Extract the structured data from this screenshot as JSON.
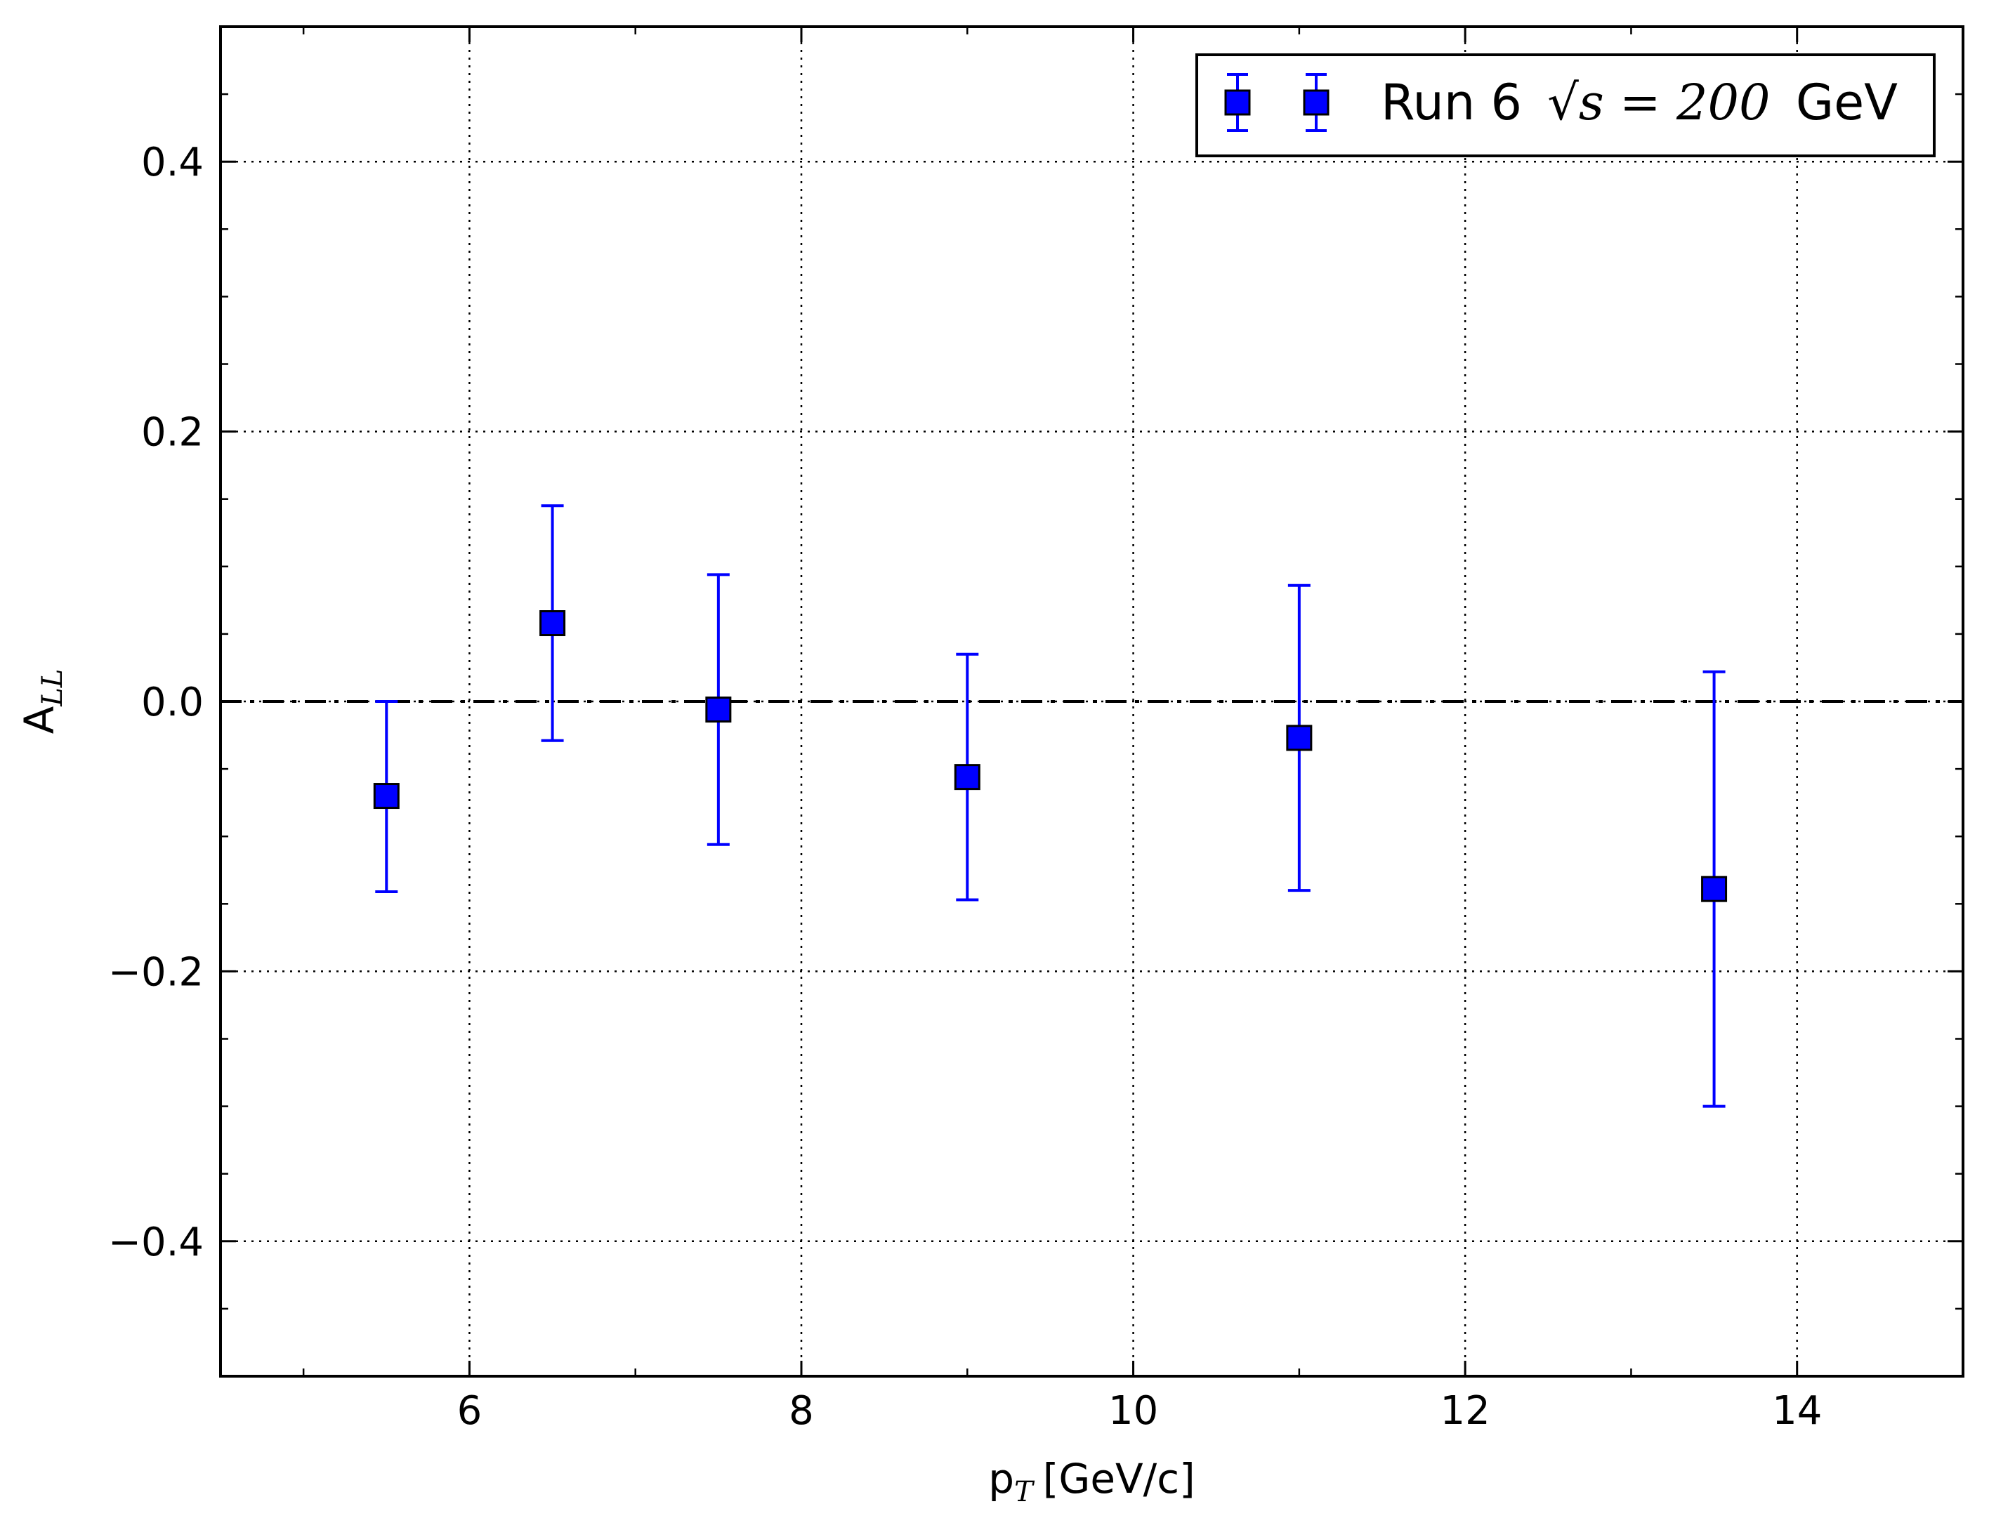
{
  "chart_data": {
    "type": "scatter",
    "xlabel": {
      "main": "p",
      "sub": "T",
      "unit": "[GeV/c]"
    },
    "ylabel": {
      "main": "A",
      "sub": "LL"
    },
    "xlim": [
      4.5,
      15
    ],
    "ylim": [
      -0.5,
      0.5
    ],
    "xticks": [
      {
        "value": 6,
        "label": "6"
      },
      {
        "value": 8,
        "label": "8"
      },
      {
        "value": 10,
        "label": "10"
      },
      {
        "value": 12,
        "label": "12"
      },
      {
        "value": 14,
        "label": "14"
      }
    ],
    "yticks": [
      {
        "value": -0.4,
        "label": "−0.4"
      },
      {
        "value": -0.2,
        "label": "−0.2"
      },
      {
        "value": 0.0,
        "label": "0.0"
      },
      {
        "value": 0.2,
        "label": "0.2"
      },
      {
        "value": 0.4,
        "label": "0.4"
      }
    ],
    "grid": true,
    "grid_style": "dotted",
    "reference_line": {
      "y": 0,
      "style": "dash-dot",
      "color": "#000000"
    },
    "legend": {
      "placement": "top-right",
      "label_text": "Run 6",
      "label_math": "√s = 200",
      "label_unit": "GeV"
    },
    "series": [
      {
        "marker": "square",
        "color": "#0000ff",
        "points": [
          {
            "x": 5.5,
            "y": -0.07,
            "yerr_low": -0.141,
            "yerr_high": 0.0
          },
          {
            "x": 6.5,
            "y": 0.058,
            "yerr_low": -0.029,
            "yerr_high": 0.145
          },
          {
            "x": 7.5,
            "y": -0.006,
            "yerr_low": -0.106,
            "yerr_high": 0.094
          },
          {
            "x": 9.0,
            "y": -0.056,
            "yerr_low": -0.147,
            "yerr_high": 0.035
          },
          {
            "x": 11.0,
            "y": -0.027,
            "yerr_low": -0.14,
            "yerr_high": 0.086
          },
          {
            "x": 13.5,
            "y": -0.139,
            "yerr_low": -0.3,
            "yerr_high": 0.022
          }
        ]
      }
    ]
  }
}
